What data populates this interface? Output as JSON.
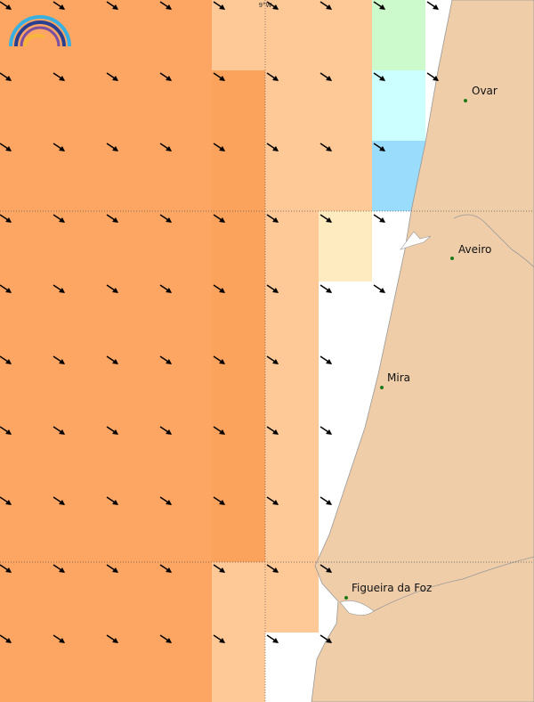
{
  "map": {
    "longitude_label": "9°W",
    "places": [
      "Ovar",
      "Aveiro",
      "Mira",
      "Figueira da Foz"
    ]
  }
}
